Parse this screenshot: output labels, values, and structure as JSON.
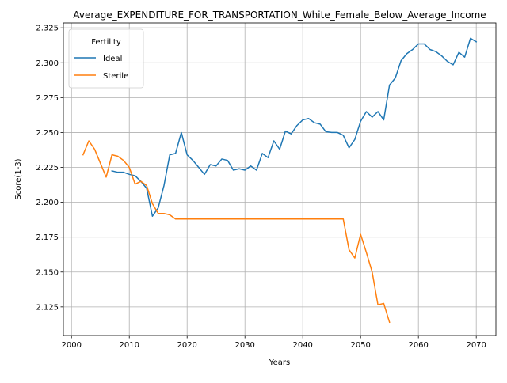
{
  "chart_data": {
    "type": "line",
    "title": "Average_EXPENDITURE_FOR_TRANSPORTATION_White_Female_Below_Average_Income",
    "xlabel": "Years",
    "ylabel": "Score(1-3)",
    "xlim": [
      1998.6,
      2073.4
    ],
    "ylim": [
      2.1045,
      2.3285
    ],
    "xticks": [
      2000,
      2010,
      2020,
      2030,
      2040,
      2050,
      2060,
      2070
    ],
    "yticks": [
      2.125,
      2.15,
      2.175,
      2.2,
      2.225,
      2.25,
      2.275,
      2.3,
      2.325
    ],
    "xtick_labels": [
      "2000",
      "2010",
      "2020",
      "2030",
      "2040",
      "2050",
      "2060",
      "2070"
    ],
    "ytick_labels": [
      "2.125",
      "2.150",
      "2.175",
      "2.200",
      "2.225",
      "2.250",
      "2.275",
      "2.300",
      "2.325"
    ],
    "grid": true,
    "legend": {
      "title": "Fertility",
      "position": "top-left"
    },
    "series": [
      {
        "name": "Ideal",
        "color": "#1f77b4",
        "x": [
          2007,
          2008,
          2009,
          2010,
          2011,
          2012,
          2013,
          2014,
          2015,
          2016,
          2017,
          2018,
          2019,
          2020,
          2021,
          2022,
          2023,
          2024,
          2025,
          2026,
          2027,
          2028,
          2029,
          2030,
          2031,
          2032,
          2033,
          2034,
          2035,
          2036,
          2037,
          2038,
          2039,
          2040,
          2041,
          2042,
          2043,
          2044,
          2045,
          2046,
          2047,
          2048,
          2049,
          2050,
          2051,
          2052,
          2053,
          2054,
          2055,
          2056,
          2057,
          2058,
          2059,
          2060,
          2061,
          2062,
          2063,
          2064,
          2065,
          2066,
          2067,
          2068,
          2069,
          2070
        ],
        "y": [
          2.2225,
          2.2215,
          2.2215,
          2.22,
          2.219,
          2.215,
          2.21,
          2.19,
          2.196,
          2.212,
          2.234,
          2.235,
          2.25,
          2.234,
          2.23,
          2.225,
          2.22,
          2.227,
          2.226,
          2.231,
          2.23,
          2.223,
          2.224,
          2.223,
          2.226,
          2.223,
          2.235,
          2.232,
          2.244,
          2.238,
          2.251,
          2.249,
          2.255,
          2.259,
          2.26,
          2.257,
          2.256,
          2.2505,
          2.25,
          2.25,
          2.248,
          2.239,
          2.245,
          2.258,
          2.265,
          2.261,
          2.265,
          2.259,
          2.284,
          2.289,
          2.3015,
          2.3065,
          2.3095,
          2.3135,
          2.3135,
          2.3095,
          2.308,
          2.305,
          2.301,
          2.2985,
          2.3075,
          2.304,
          2.3175,
          2.315
        ]
      },
      {
        "name": "Sterile",
        "color": "#ff7f0e",
        "x": [
          2002,
          2003,
          2004,
          2005,
          2006,
          2007,
          2008,
          2009,
          2010,
          2011,
          2012,
          2013,
          2014,
          2015,
          2016,
          2017,
          2018,
          2019,
          2020,
          2021,
          2022,
          2023,
          2024,
          2025,
          2026,
          2027,
          2028,
          2029,
          2030,
          2031,
          2032,
          2033,
          2034,
          2035,
          2036,
          2037,
          2038,
          2039,
          2040,
          2041,
          2042,
          2043,
          2044,
          2045,
          2046,
          2047,
          2048,
          2049,
          2050,
          2051,
          2052,
          2053,
          2054,
          2055
        ],
        "y": [
          2.234,
          2.244,
          2.238,
          2.228,
          2.218,
          2.234,
          2.233,
          2.23,
          2.225,
          2.213,
          2.215,
          2.212,
          2.199,
          2.192,
          2.192,
          2.191,
          2.188,
          2.188,
          2.188,
          2.188,
          2.188,
          2.188,
          2.188,
          2.188,
          2.188,
          2.188,
          2.188,
          2.188,
          2.188,
          2.188,
          2.188,
          2.188,
          2.188,
          2.188,
          2.188,
          2.188,
          2.188,
          2.188,
          2.188,
          2.188,
          2.188,
          2.188,
          2.188,
          2.188,
          2.188,
          2.188,
          2.166,
          2.16,
          2.177,
          2.164,
          2.15,
          2.1265,
          2.1275,
          2.114
        ]
      }
    ]
  }
}
